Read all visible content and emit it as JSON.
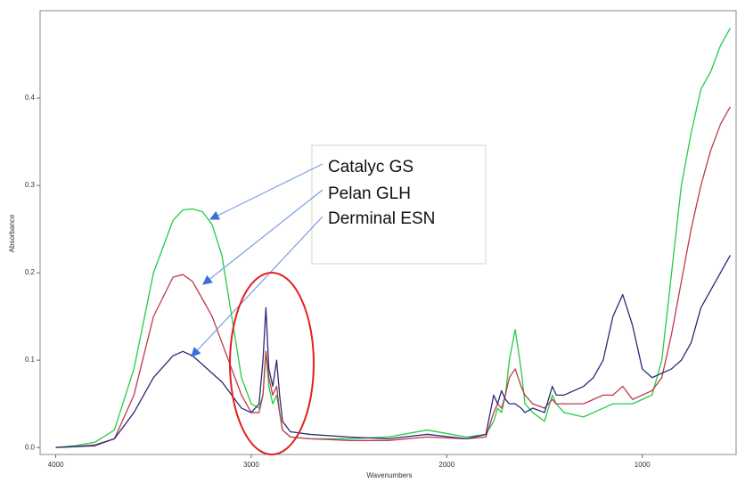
{
  "chart_data": {
    "type": "line",
    "xlabel": "Wavenumbers",
    "ylabel": "Absorbance",
    "x": [
      4000,
      3900,
      3800,
      3700,
      3600,
      3500,
      3400,
      3350,
      3300,
      3250,
      3200,
      3150,
      3100,
      3050,
      3000,
      2960,
      2940,
      2925,
      2910,
      2890,
      2870,
      2855,
      2840,
      2800,
      2700,
      2500,
      2300,
      2100,
      1900,
      1800,
      1760,
      1740,
      1720,
      1700,
      1680,
      1650,
      1620,
      1600,
      1560,
      1500,
      1460,
      1440,
      1400,
      1300,
      1250,
      1200,
      1150,
      1100,
      1050,
      1000,
      950,
      900,
      850,
      800,
      750,
      700,
      650,
      600,
      550
    ],
    "series": [
      {
        "name": "Catalyc GS",
        "color": "#22cc44",
        "values": [
          0,
          0.002,
          0.006,
          0.02,
          0.09,
          0.2,
          0.26,
          0.272,
          0.273,
          0.27,
          0.255,
          0.22,
          0.15,
          0.08,
          0.05,
          0.045,
          0.06,
          0.11,
          0.07,
          0.05,
          0.06,
          0.04,
          0.02,
          0.012,
          0.01,
          0.01,
          0.012,
          0.02,
          0.012,
          0.015,
          0.03,
          0.045,
          0.04,
          0.06,
          0.1,
          0.135,
          0.09,
          0.05,
          0.04,
          0.03,
          0.06,
          0.05,
          0.04,
          0.035,
          0.04,
          0.045,
          0.05,
          0.05,
          0.05,
          0.055,
          0.06,
          0.1,
          0.2,
          0.3,
          0.36,
          0.41,
          0.43,
          0.46,
          0.48
        ]
      },
      {
        "name": "Pelan GLH",
        "color": "#c0394a",
        "values": [
          0,
          0.001,
          0.003,
          0.01,
          0.06,
          0.15,
          0.195,
          0.198,
          0.19,
          0.17,
          0.15,
          0.12,
          0.09,
          0.06,
          0.04,
          0.04,
          0.06,
          0.11,
          0.08,
          0.06,
          0.07,
          0.04,
          0.02,
          0.012,
          0.01,
          0.008,
          0.008,
          0.012,
          0.01,
          0.012,
          0.04,
          0.05,
          0.045,
          0.06,
          0.08,
          0.09,
          0.07,
          0.06,
          0.05,
          0.045,
          0.055,
          0.05,
          0.05,
          0.05,
          0.055,
          0.06,
          0.06,
          0.07,
          0.055,
          0.06,
          0.065,
          0.08,
          0.13,
          0.19,
          0.25,
          0.3,
          0.34,
          0.37,
          0.39
        ]
      },
      {
        "name": "Derminal ESN",
        "color": "#2a2a7a",
        "values": [
          0,
          0.001,
          0.002,
          0.01,
          0.04,
          0.08,
          0.105,
          0.11,
          0.105,
          0.095,
          0.085,
          0.075,
          0.06,
          0.045,
          0.04,
          0.05,
          0.1,
          0.16,
          0.09,
          0.07,
          0.1,
          0.06,
          0.03,
          0.018,
          0.015,
          0.012,
          0.01,
          0.015,
          0.01,
          0.015,
          0.06,
          0.05,
          0.065,
          0.055,
          0.05,
          0.05,
          0.045,
          0.04,
          0.045,
          0.04,
          0.07,
          0.06,
          0.06,
          0.07,
          0.08,
          0.1,
          0.15,
          0.175,
          0.14,
          0.09,
          0.08,
          0.085,
          0.09,
          0.1,
          0.12,
          0.16,
          0.18,
          0.2,
          0.22
        ]
      }
    ],
    "xlim": [
      4080,
      520
    ],
    "ylim": [
      -0.008,
      0.5
    ],
    "xticks": [
      4000,
      3000,
      2000,
      1000
    ],
    "yticks": [
      {
        "value": 0,
        "label": "0.0"
      },
      0.1,
      0.2,
      0.3,
      0.4
    ]
  }
}
